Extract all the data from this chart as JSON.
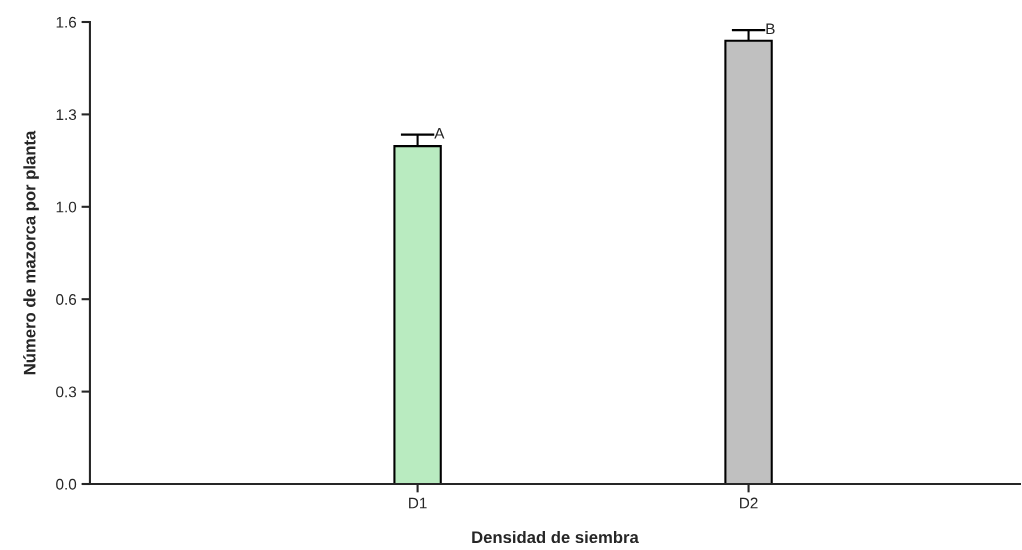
{
  "chart_data": {
    "type": "bar",
    "xlabel": "Densidad de siembra",
    "ylabel": "Número de mazorca por planta",
    "categories": [
      "D1",
      "D2"
    ],
    "values": [
      1.17,
      1.535
    ],
    "colors": [
      "#b9ebc0",
      "#c0c0c0"
    ],
    "errors": [
      0.04,
      0.037
    ],
    "ylim": [
      0,
      1.6
    ],
    "yticks": [
      {
        "value": 0,
        "label": "0.0"
      },
      {
        "value": 0.32,
        "label": "0.3"
      },
      {
        "value": 0.64,
        "label": "0.6"
      },
      {
        "value": 0.96,
        "label": "1.0"
      },
      {
        "value": 1.28,
        "label": "1.3"
      },
      1.6
    ],
    "annotations": [
      "A",
      "B"
    ],
    "grid": false,
    "legend": false
  }
}
